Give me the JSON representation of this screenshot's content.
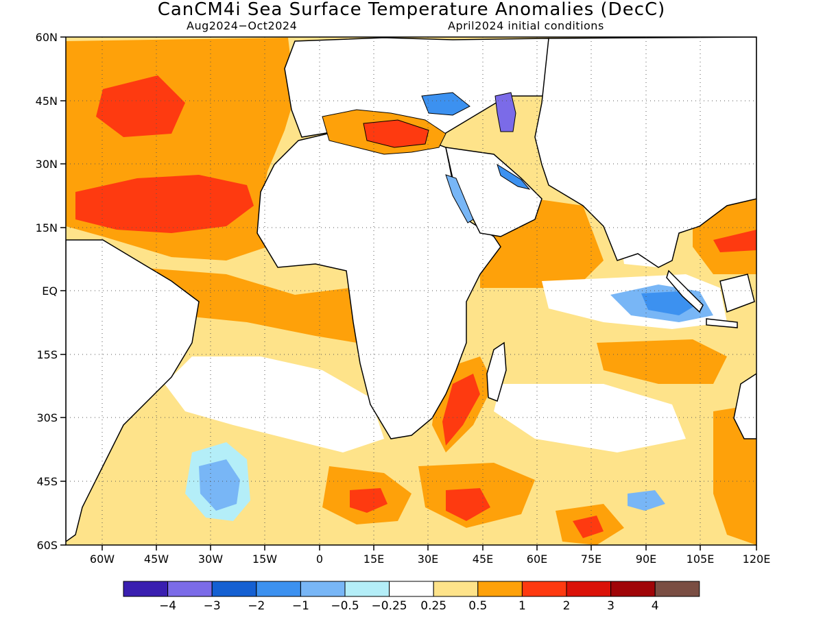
{
  "title": "CanCM4i Sea Surface Temperature Anomalies (DecC)",
  "subtitle_left": "Aug2024−Oct2024",
  "subtitle_right": "April2024 initial conditions",
  "lat_ticks": [
    "60N",
    "45N",
    "30N",
    "15N",
    "EQ",
    "15S",
    "30S",
    "45S",
    "60S"
  ],
  "lon_ticks": [
    "60W",
    "45W",
    "30W",
    "15W",
    "0",
    "15E",
    "30E",
    "45E",
    "60E",
    "75E",
    "90E",
    "105E",
    "120E"
  ],
  "colorbar": {
    "colors": [
      "#3a1fb0",
      "#7b6be8",
      "#1560d2",
      "#3c91f0",
      "#78b6f6",
      "#b4eef8",
      "#ffffff",
      "#fee38a",
      "#fea10a",
      "#fe3a10",
      "#db1208",
      "#a00508",
      "#7a4e43"
    ],
    "labels": [
      "−4",
      "−3",
      "−2",
      "−1",
      "−0.5",
      "−0.25",
      "0.25",
      "0.5",
      "1",
      "2",
      "3",
      "4"
    ]
  }
}
